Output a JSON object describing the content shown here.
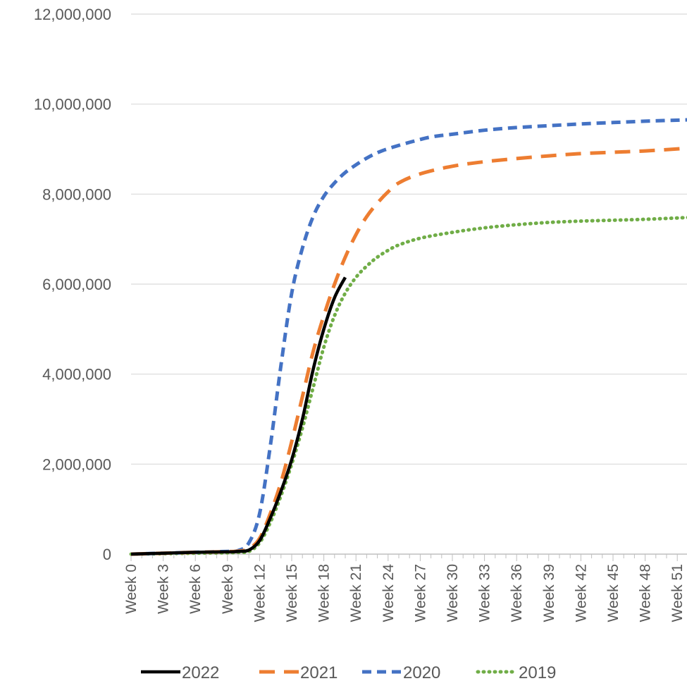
{
  "chart_data": {
    "type": "line",
    "title": "",
    "xlabel": "",
    "ylabel": "",
    "ylim": [
      0,
      12000000
    ],
    "yticks": [
      0,
      2000000,
      4000000,
      6000000,
      8000000,
      10000000,
      12000000
    ],
    "ytick_labels": [
      "0",
      "2,000,000",
      "4,000,000",
      "6,000,000",
      "8,000,000",
      "10,000,000",
      "12,000,000"
    ],
    "x_weeks": [
      0,
      52
    ],
    "xtick_labels": [
      "Week 0",
      "Week 3",
      "Week 6",
      "Week 9",
      "Week 12",
      "Week 15",
      "Week 18",
      "Week 21",
      "Week 24",
      "Week 27",
      "Week 30",
      "Week 33",
      "Week 36",
      "Week 39",
      "Week 42",
      "Week 45",
      "Week 48",
      "Week 51"
    ],
    "grid": true,
    "legend_position": "bottom",
    "series": [
      {
        "name": "2022",
        "color": "#000000",
        "style": "solid",
        "weeks": [
          0,
          3,
          6,
          9,
          10,
          11,
          12,
          13,
          14,
          15,
          16,
          17,
          18,
          19,
          20
        ],
        "values": [
          0,
          20000,
          40000,
          50000,
          60000,
          90000,
          300000,
          800000,
          1400000,
          2100000,
          3000000,
          4100000,
          5000000,
          5700000,
          6150000
        ]
      },
      {
        "name": "2021",
        "color": "#ED7D31",
        "style": "dash",
        "weeks": [
          0,
          3,
          6,
          9,
          10,
          11,
          12,
          13,
          14,
          15,
          16,
          17,
          18,
          19,
          20,
          21,
          22,
          23,
          24,
          25,
          27,
          30,
          33,
          36,
          39,
          42,
          45,
          48,
          52
        ],
        "values": [
          0,
          20000,
          40000,
          55000,
          65000,
          120000,
          350000,
          900000,
          1600000,
          2500000,
          3500000,
          4500000,
          5300000,
          6000000,
          6600000,
          7100000,
          7500000,
          7800000,
          8050000,
          8250000,
          8450000,
          8620000,
          8720000,
          8790000,
          8850000,
          8900000,
          8930000,
          8960000,
          9020000
        ]
      },
      {
        "name": "2020",
        "color": "#4472C4",
        "style": "shortdash",
        "weeks": [
          0,
          3,
          6,
          9,
          10,
          11,
          12,
          13,
          14,
          15,
          16,
          17,
          18,
          19,
          20,
          21,
          22,
          23,
          24,
          26,
          28,
          30,
          33,
          36,
          39,
          42,
          45,
          48,
          52
        ],
        "values": [
          0,
          20000,
          40000,
          60000,
          80000,
          250000,
          900000,
          2400000,
          4200000,
          5800000,
          6800000,
          7500000,
          7950000,
          8250000,
          8480000,
          8650000,
          8800000,
          8920000,
          9010000,
          9150000,
          9270000,
          9330000,
          9420000,
          9480000,
          9520000,
          9560000,
          9590000,
          9620000,
          9650000
        ]
      },
      {
        "name": "2019",
        "color": "#70AD47",
        "style": "dot",
        "weeks": [
          0,
          3,
          6,
          9,
          10,
          11,
          12,
          13,
          14,
          15,
          16,
          17,
          18,
          19,
          20,
          21,
          22,
          23,
          24,
          25,
          27,
          30,
          33,
          36,
          39,
          42,
          45,
          48,
          52
        ],
        "values": [
          0,
          10000,
          20000,
          30000,
          40000,
          60000,
          250000,
          700000,
          1300000,
          2000000,
          2800000,
          3700000,
          4600000,
          5300000,
          5800000,
          6150000,
          6400000,
          6600000,
          6750000,
          6870000,
          7020000,
          7150000,
          7250000,
          7320000,
          7370000,
          7400000,
          7420000,
          7440000,
          7480000
        ]
      }
    ]
  }
}
